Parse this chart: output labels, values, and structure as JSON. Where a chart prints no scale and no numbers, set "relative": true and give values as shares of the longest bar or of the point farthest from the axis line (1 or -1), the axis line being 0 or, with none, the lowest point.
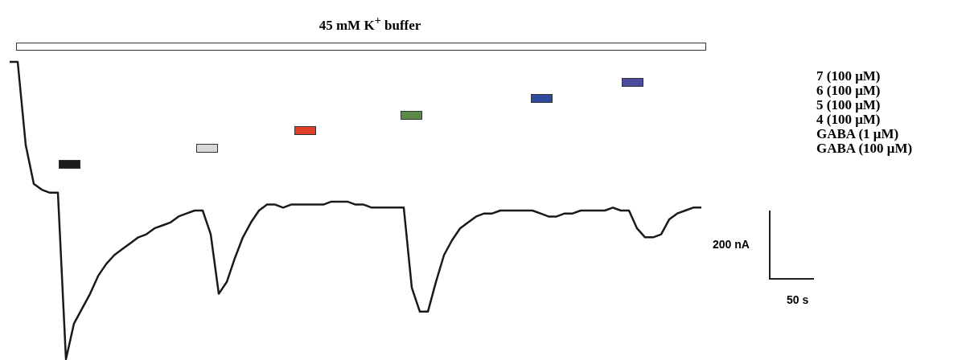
{
  "chart_data": {
    "type": "line",
    "title": "45 mM K$^{+}$ buffer",
    "relative": true,
    "categories": [
      null,
      null,
      null,
      null,
      null,
      null,
      null,
      null,
      null,
      null,
      null,
      null,
      null,
      null,
      null,
      null,
      null,
      null,
      null,
      null,
      null,
      null,
      null,
      null,
      null,
      null,
      null,
      null,
      null,
      null,
      null,
      null,
      null,
      null,
      null,
      null,
      null,
      null,
      null,
      null,
      null,
      null,
      null,
      null,
      null,
      null,
      null,
      null,
      null,
      null,
      null,
      null,
      null,
      null,
      null,
      null,
      null,
      null,
      null,
      null,
      null,
      null,
      null,
      null,
      null,
      null,
      null,
      null,
      null,
      null,
      null,
      null,
      null,
      null,
      null,
      null,
      null,
      null,
      null,
      null,
      null,
      null,
      null,
      null,
      null,
      null,
      null
    ],
    "series": [
      {
        "color": "#1a1a1a",
        "values": [
          1,
          1,
          0.72,
          0.59,
          0.57,
          0.56,
          0.56,
          0,
          0.12,
          0.17,
          0.22,
          0.28,
          0.32,
          0.35,
          0.37,
          0.39,
          0.41,
          0.42,
          0.44,
          0.45,
          0.46,
          0.48,
          0.49,
          0.5,
          0.5,
          0.42,
          0.22,
          0.26,
          0.34,
          0.41,
          0.46,
          0.5,
          0.52,
          0.52,
          0.51,
          0.52,
          0.52,
          0.52,
          0.52,
          0.52,
          0.53,
          0.53,
          0.53,
          0.52,
          0.52,
          0.51,
          0.51,
          0.51,
          0.51,
          0.51,
          0.24,
          0.16,
          0.16,
          0.26,
          0.35,
          0.4,
          0.44,
          0.46,
          0.48,
          0.49,
          0.49,
          0.5,
          0.5,
          0.5,
          0.5,
          0.5,
          0.49,
          0.48,
          0.48,
          0.49,
          0.49,
          0.5,
          0.5,
          0.5,
          0.5,
          0.51,
          0.5,
          0.5,
          0.44,
          0.41,
          0.41,
          0.42,
          0.47,
          0.49,
          0.5,
          0.51,
          0.51
        ]
      }
    ],
    "annotations": [
      "7 (100 μM)",
      "6 (100 μM)",
      "5 (100 μM)",
      "4 (100 μM)",
      "GABA (1 μM)",
      "GABA (100 μM)",
      "200 nA",
      "50 s"
    ]
  }
}
